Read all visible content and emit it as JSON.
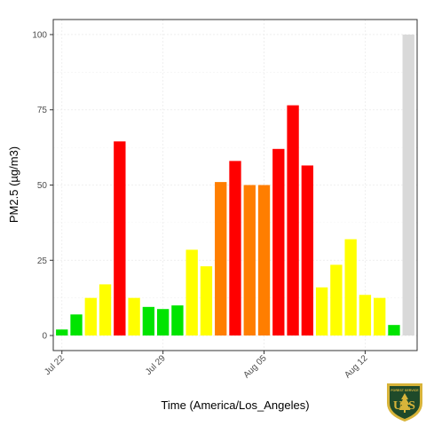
{
  "chart_data": {
    "type": "bar",
    "xlabel": "Time (America/Los_Angeles)",
    "ylabel": "PM2.5 (µg/m3)",
    "ylim": [
      -5,
      105
    ],
    "y_ticks": [
      0,
      25,
      50,
      75,
      100
    ],
    "x_ticks": [
      {
        "label": "Jul 22",
        "day": 0
      },
      {
        "label": "Jul 29",
        "day": 7
      },
      {
        "label": "Aug 05",
        "day": 14
      },
      {
        "label": "Aug 12",
        "day": 21
      }
    ],
    "grid": true,
    "values": [
      2,
      7,
      12.5,
      17,
      64.5,
      12.5,
      9.5,
      8.8,
      10,
      28.5,
      23,
      51,
      58,
      50,
      50,
      62,
      76.5,
      56.5,
      16,
      23.5,
      32,
      13.5,
      12.5,
      3.5,
      100
    ],
    "colors": [
      "#00e400",
      "#00e400",
      "#ffff00",
      "#ffff00",
      "#ff0000",
      "#ffff00",
      "#00e400",
      "#00e400",
      "#00e400",
      "#ffff00",
      "#ffff00",
      "#ff7e00",
      "#ff0000",
      "#ff7e00",
      "#ff7e00",
      "#ff0000",
      "#ff0000",
      "#ff0000",
      "#ffff00",
      "#ffff00",
      "#ffff00",
      "#ffff00",
      "#ffff00",
      "#00e400",
      "#d9d9d9"
    ]
  },
  "logo": {
    "text": "US",
    "subtext": "FOREST SERVICE",
    "colors": {
      "green": "#1f4a2a",
      "gold": "#d8b43a"
    }
  }
}
